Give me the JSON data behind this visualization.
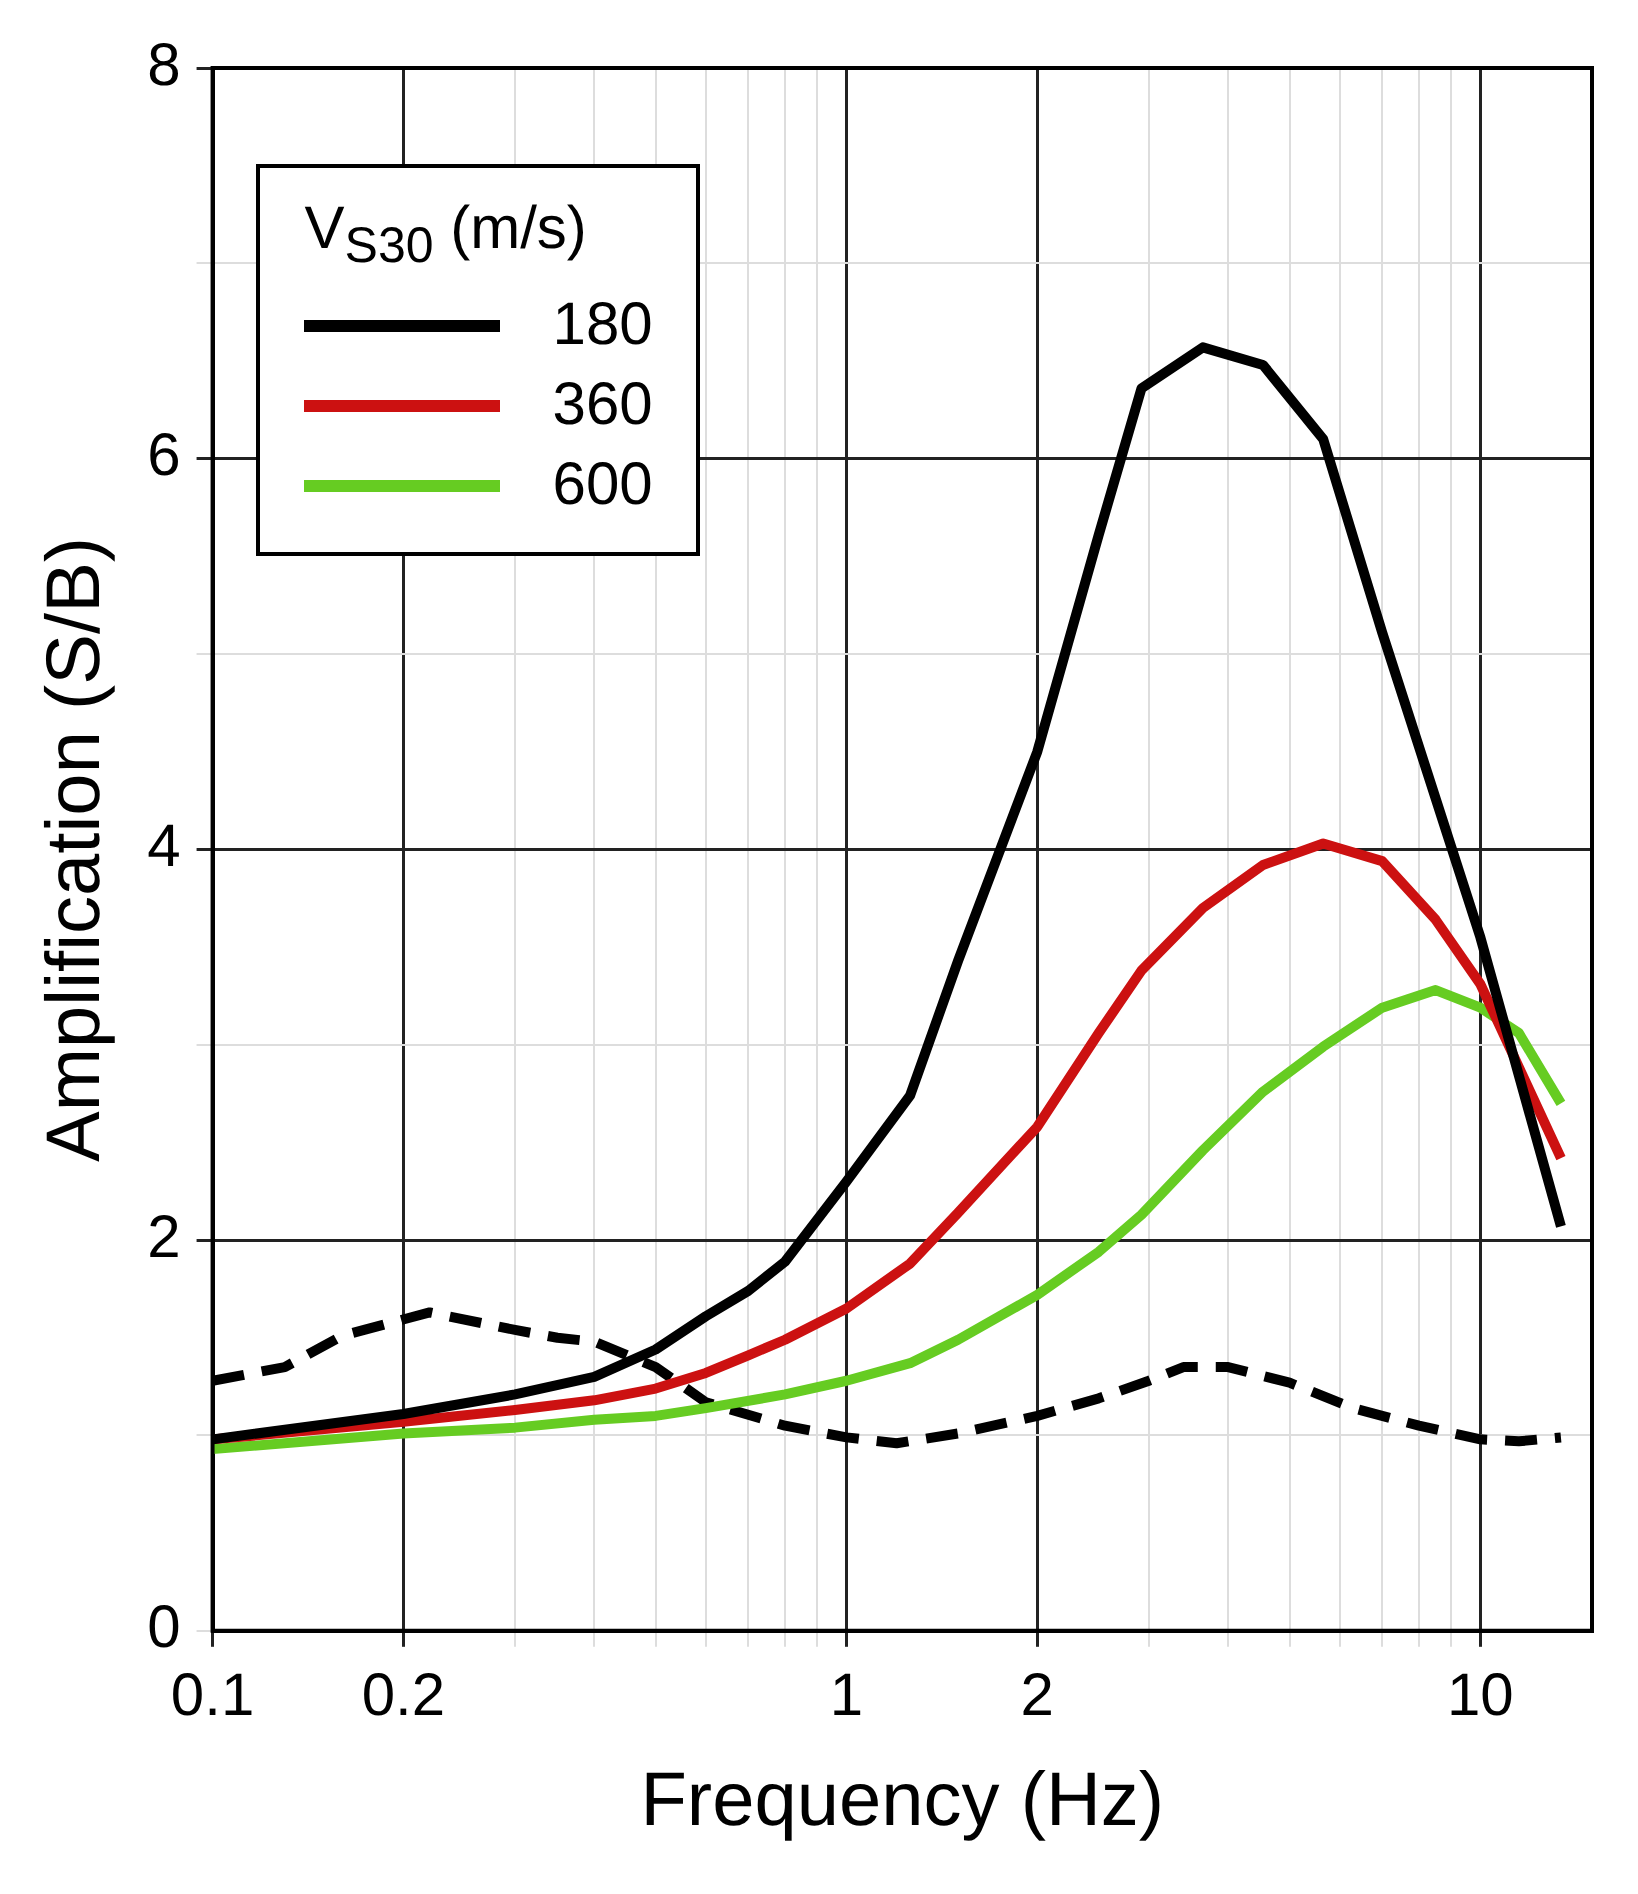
{
  "chart_data": {
    "type": "line",
    "xlabel": "Frequency (Hz)",
    "ylabel": "Amplification (S/B)",
    "legend_title": "V$_{S30}$ (m/s)",
    "legend": "top left",
    "grid": true,
    "log": "x",
    "marker": "none",
    "xlim": [
      0.1,
      15
    ],
    "ylim": [
      0,
      8
    ],
    "xticks": [
      0.1,
      0.2,
      {
        "value": 0.3,
        "label": null
      },
      {
        "value": 0.4,
        "label": null
      },
      {
        "value": 0.5,
        "label": null
      },
      {
        "value": 0.6,
        "label": null
      },
      {
        "value": 0.7,
        "label": null
      },
      {
        "value": 0.8,
        "label": null
      },
      {
        "value": 0.9,
        "label": null
      },
      1,
      2,
      {
        "value": 3,
        "label": null
      },
      {
        "value": 4,
        "label": null
      },
      {
        "value": 5,
        "label": null
      },
      {
        "value": 6,
        "label": null
      },
      {
        "value": 7,
        "label": null
      },
      {
        "value": 8,
        "label": null
      },
      {
        "value": 9,
        "label": null
      },
      10
    ],
    "yticks": [
      0,
      {
        "value": 1,
        "label": null
      },
      2,
      {
        "value": 3,
        "label": null
      },
      4,
      {
        "value": 5,
        "label": null
      },
      6,
      {
        "value": 7,
        "label": null
      },
      8
    ],
    "series": [
      {
        "name": "180",
        "color": "#000000",
        "line_style": "solid",
        "x": [
          0.1,
          0.2,
          0.3,
          0.4,
          0.5,
          0.6,
          0.7,
          0.8,
          1,
          1.26,
          1.5,
          2,
          2.5,
          2.92,
          3.65,
          4.54,
          5.65,
          7,
          10,
          13.4
        ],
        "values": [
          0.98,
          1.11,
          1.21,
          1.3,
          1.44,
          1.61,
          1.74,
          1.89,
          2.3,
          2.74,
          3.43,
          4.5,
          5.61,
          6.36,
          6.57,
          6.48,
          6.1,
          5.11,
          3.55,
          2.07
        ]
      },
      {
        "name": "360",
        "color": "#cc1111",
        "line_style": "solid",
        "x": [
          0.1,
          0.2,
          0.3,
          0.4,
          0.5,
          0.6,
          0.7,
          0.8,
          1,
          1.26,
          1.5,
          2,
          2.5,
          2.92,
          3.65,
          4.54,
          5.65,
          7,
          8.5,
          10,
          13.4
        ],
        "values": [
          0.98,
          1.07,
          1.13,
          1.18,
          1.24,
          1.32,
          1.41,
          1.49,
          1.65,
          1.88,
          2.14,
          2.58,
          3.06,
          3.38,
          3.7,
          3.92,
          4.03,
          3.94,
          3.64,
          3.31,
          2.42
        ]
      },
      {
        "name": "600",
        "color": "#66cc22",
        "line_style": "solid",
        "x": [
          0.1,
          0.2,
          0.3,
          0.4,
          0.5,
          0.6,
          0.8,
          1,
          1.26,
          1.5,
          2,
          2.5,
          2.92,
          3.65,
          4.54,
          5.65,
          7,
          8.5,
          10,
          11.5,
          13.4
        ],
        "values": [
          0.93,
          1.01,
          1.04,
          1.08,
          1.1,
          1.14,
          1.21,
          1.28,
          1.37,
          1.49,
          1.72,
          1.94,
          2.13,
          2.46,
          2.76,
          2.99,
          3.19,
          3.28,
          3.19,
          3.06,
          2.7
        ]
      },
      {
        "color": "#000000",
        "line_style": "dashed",
        "x": [
          0.1,
          0.13,
          0.16,
          0.22,
          0.3,
          0.35,
          0.4,
          0.5,
          0.6,
          0.8,
          1,
          1.2,
          1.5,
          2,
          2.5,
          3,
          3.4,
          4,
          5,
          6.3,
          8,
          10,
          11.5,
          13.4
        ],
        "values": [
          1.28,
          1.35,
          1.51,
          1.63,
          1.54,
          1.5,
          1.48,
          1.35,
          1.17,
          1.05,
          0.99,
          0.96,
          1.01,
          1.1,
          1.19,
          1.28,
          1.35,
          1.35,
          1.27,
          1.14,
          1.05,
          0.98,
          0.97,
          0.99
        ]
      }
    ]
  }
}
